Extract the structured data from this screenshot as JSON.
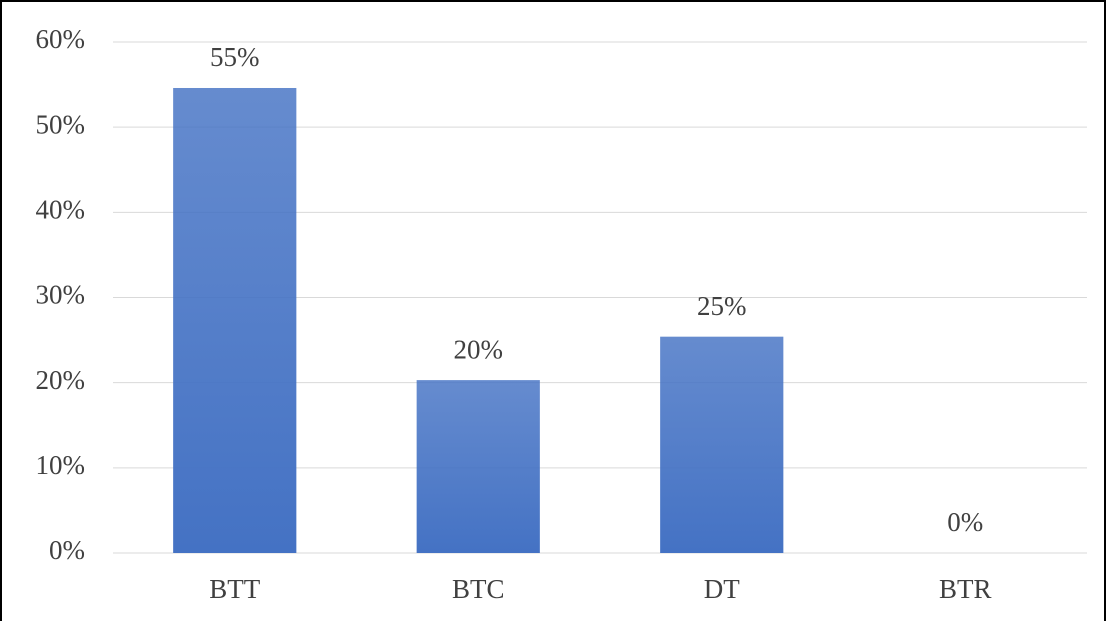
{
  "chart_data": {
    "type": "bar",
    "categories": [
      "BTT",
      "BTC",
      "DT",
      "BTR"
    ],
    "values": [
      54.6,
      20.3,
      25.4,
      0
    ],
    "value_labels": [
      "55%",
      "20%",
      "25%",
      "0%"
    ],
    "color": "#4472c4",
    "ylim": [
      0,
      60
    ],
    "yticks": [
      {
        "value": 0,
        "label": "0%"
      },
      {
        "value": 10,
        "label": "10%"
      },
      {
        "value": 20,
        "label": "20%"
      },
      {
        "value": 30,
        "label": "30%"
      },
      {
        "value": 40,
        "label": "40%"
      },
      {
        "value": 50,
        "label": "50%"
      },
      {
        "value": 60,
        "label": "60%"
      }
    ],
    "grid": true
  }
}
